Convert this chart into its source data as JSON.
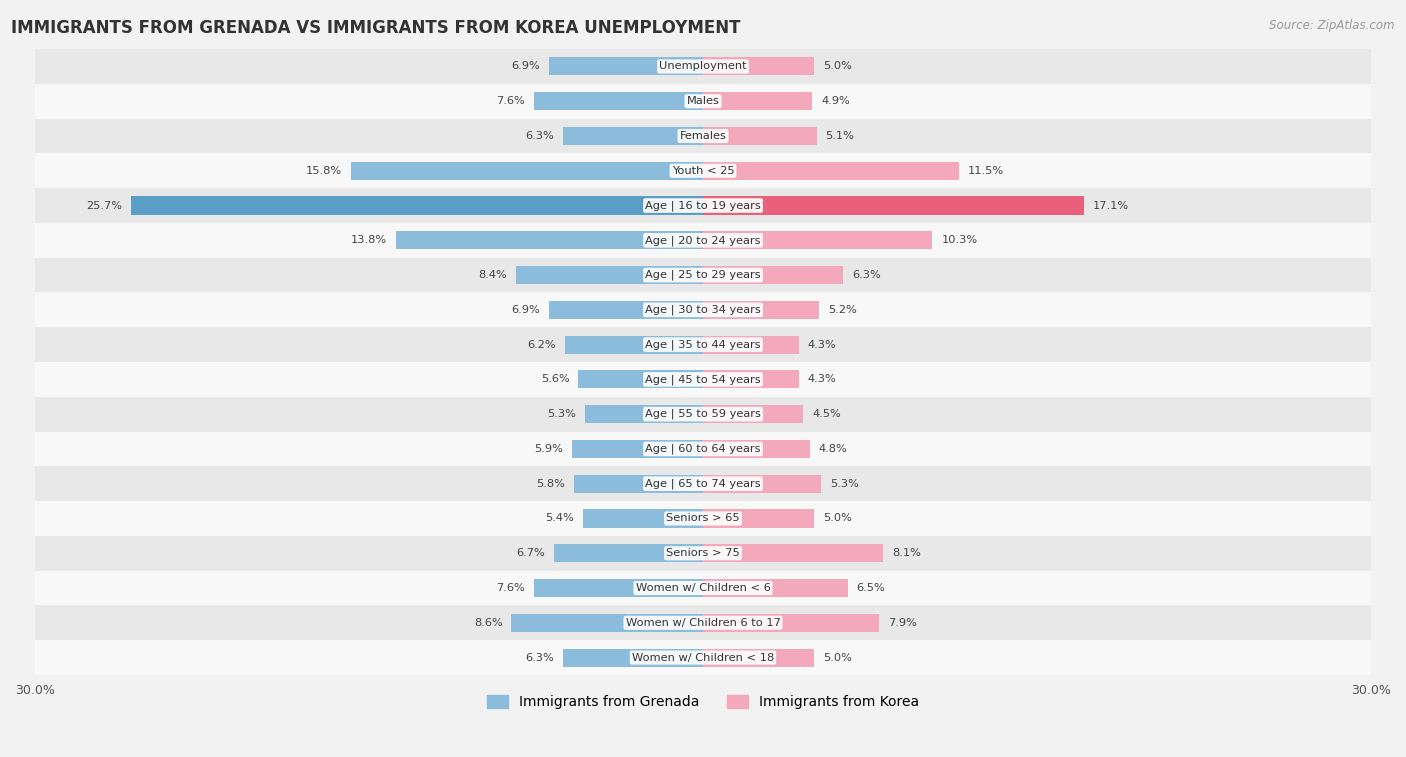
{
  "title": "IMMIGRANTS FROM GRENADA VS IMMIGRANTS FROM KOREA UNEMPLOYMENT",
  "source": "Source: ZipAtlas.com",
  "categories": [
    "Unemployment",
    "Males",
    "Females",
    "Youth < 25",
    "Age | 16 to 19 years",
    "Age | 20 to 24 years",
    "Age | 25 to 29 years",
    "Age | 30 to 34 years",
    "Age | 35 to 44 years",
    "Age | 45 to 54 years",
    "Age | 55 to 59 years",
    "Age | 60 to 64 years",
    "Age | 65 to 74 years",
    "Seniors > 65",
    "Seniors > 75",
    "Women w/ Children < 6",
    "Women w/ Children 6 to 17",
    "Women w/ Children < 18"
  ],
  "grenada_values": [
    6.9,
    7.6,
    6.3,
    15.8,
    25.7,
    13.8,
    8.4,
    6.9,
    6.2,
    5.6,
    5.3,
    5.9,
    5.8,
    5.4,
    6.7,
    7.6,
    8.6,
    6.3
  ],
  "korea_values": [
    5.0,
    4.9,
    5.1,
    11.5,
    17.1,
    10.3,
    6.3,
    5.2,
    4.3,
    4.3,
    4.5,
    4.8,
    5.3,
    5.0,
    8.1,
    6.5,
    7.9,
    5.0
  ],
  "grenada_color": "#8bbcdb",
  "korea_color": "#f4a8bc",
  "grenada_highlight_color": "#5a9ec8",
  "korea_highlight_color": "#e8607a",
  "background_color": "#f2f2f2",
  "row_bg_light": "#f8f8f8",
  "row_bg_dark": "#e8e8e8",
  "axis_limit": 30.0,
  "legend_grenada": "Immigrants from Grenada",
  "legend_korea": "Immigrants from Korea"
}
